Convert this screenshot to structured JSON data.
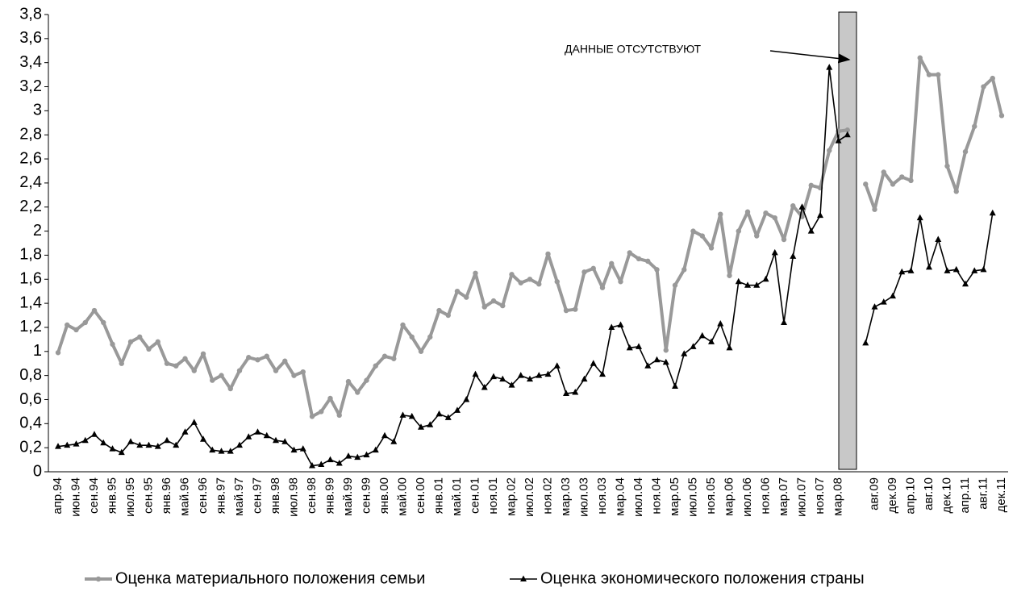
{
  "chart_data": {
    "type": "line",
    "annotation": "ДАННЫЕ  ОТСУТСТВУЮТ",
    "categories": [
      "апр.94",
      null,
      "июн.94",
      null,
      "сен.94",
      null,
      "янв.95",
      null,
      "июл.95",
      null,
      "сен.95",
      null,
      "янв.96",
      null,
      "май.96",
      null,
      "сен.96",
      null,
      "янв.97",
      null,
      "май.97",
      null,
      "сен.97",
      null,
      "янв.98",
      null,
      "июл.98",
      null,
      "сен.98",
      null,
      "янв.99",
      null,
      "май.99",
      null,
      "сен.99",
      null,
      "янв.00",
      null,
      "май.00",
      null,
      "сен.00",
      null,
      "янв.01",
      null,
      "май.01",
      null,
      "сен.01",
      null,
      "ноя.01",
      null,
      "мар.02",
      null,
      "июл.02",
      null,
      "ноя.02",
      null,
      "мар.03",
      null,
      "июл.03",
      null,
      "ноя.03",
      null,
      "мар.04",
      null,
      "июл.04",
      null,
      "ноя.04",
      null,
      "мар.05",
      null,
      "июл.05",
      null,
      "ноя.05",
      null,
      "мар.06",
      null,
      "июл.06",
      null,
      "ноя.06",
      null,
      "мар.07",
      null,
      "июл.07",
      null,
      "ноя.07",
      null,
      "мар.08",
      null,
      null,
      null,
      "авг.09",
      null,
      "дек.09",
      null,
      "апр.10",
      null,
      "авг.10",
      null,
      "дек.10",
      null,
      "апр.11",
      null,
      "авг.11",
      null,
      "дек.11"
    ],
    "series": [
      {
        "name": "Оценка материального положения семьи",
        "color": "#999999",
        "marker": "circle",
        "values": [
          0.99,
          1.22,
          1.18,
          1.24,
          1.34,
          1.24,
          1.06,
          0.9,
          1.08,
          1.12,
          1.02,
          1.08,
          0.9,
          0.88,
          0.94,
          0.84,
          0.98,
          0.76,
          0.8,
          0.69,
          0.84,
          0.95,
          0.93,
          0.96,
          0.84,
          0.92,
          0.8,
          0.83,
          0.46,
          0.5,
          0.61,
          0.47,
          0.75,
          0.66,
          0.76,
          0.88,
          0.96,
          0.94,
          1.22,
          1.12,
          1.0,
          1.12,
          1.34,
          1.3,
          1.5,
          1.45,
          1.65,
          1.37,
          1.42,
          1.38,
          1.64,
          1.57,
          1.6,
          1.56,
          1.81,
          1.58,
          1.34,
          1.35,
          1.66,
          1.69,
          1.53,
          1.73,
          1.58,
          1.82,
          1.77,
          1.75,
          1.68,
          1.01,
          1.55,
          1.68,
          2.0,
          1.96,
          1.86,
          2.14,
          1.63,
          2.0,
          2.16,
          1.96,
          2.15,
          2.11,
          1.93,
          2.21,
          2.12,
          2.38,
          2.36,
          2.67,
          2.83,
          2.84,
          null,
          2.39,
          2.18,
          2.49,
          2.39,
          2.45,
          2.42,
          3.44,
          3.3,
          3.3,
          2.54,
          2.33,
          2.66,
          2.87,
          3.2,
          3.27,
          2.96
        ]
      },
      {
        "name": "Оценка экономического положения страны",
        "color": "#000000",
        "marker": "triangle",
        "values": [
          0.21,
          0.22,
          0.23,
          0.26,
          0.31,
          0.24,
          0.19,
          0.16,
          0.25,
          0.22,
          0.22,
          0.21,
          0.26,
          0.22,
          0.33,
          0.41,
          0.27,
          0.18,
          0.17,
          0.17,
          0.22,
          0.29,
          0.33,
          0.3,
          0.26,
          0.25,
          0.18,
          0.19,
          0.05,
          0.06,
          0.1,
          0.07,
          0.13,
          0.12,
          0.14,
          0.18,
          0.3,
          0.25,
          0.47,
          0.46,
          0.37,
          0.39,
          0.48,
          0.45,
          0.51,
          0.6,
          0.81,
          0.7,
          0.79,
          0.77,
          0.72,
          0.8,
          0.77,
          0.8,
          0.81,
          0.88,
          0.65,
          0.66,
          0.77,
          0.9,
          0.81,
          1.2,
          1.22,
          1.03,
          1.04,
          0.88,
          0.93,
          0.91,
          0.71,
          0.98,
          1.04,
          1.13,
          1.08,
          1.23,
          1.03,
          1.58,
          1.55,
          1.55,
          1.6,
          1.82,
          1.24,
          1.79,
          2.2,
          2.0,
          2.13,
          3.36,
          2.75,
          2.8,
          null,
          1.07,
          1.37,
          1.41,
          1.46,
          1.66,
          1.67,
          2.11,
          1.7,
          1.93,
          1.67,
          1.68,
          1.56,
          1.67,
          1.68,
          2.15,
          null
        ]
      }
    ],
    "ylim": [
      0,
      3.8
    ],
    "yticks": [
      0,
      {
        "value": 0.2,
        "label": "0,2"
      },
      {
        "value": 0.4,
        "label": "0,4"
      },
      {
        "value": 0.6,
        "label": "0,6"
      },
      {
        "value": 0.8,
        "label": "0,8"
      },
      1,
      {
        "value": 1.2,
        "label": "1,2"
      },
      {
        "value": 1.4,
        "label": "1,4"
      },
      {
        "value": 1.6,
        "label": "1,6"
      },
      {
        "value": 1.8,
        "label": "1,8"
      },
      2,
      {
        "value": 2.2,
        "label": "2,2"
      },
      {
        "value": 2.4,
        "label": "2,4"
      },
      {
        "value": 2.6,
        "label": "2,6"
      },
      {
        "value": 2.8,
        "label": "2,8"
      },
      3,
      {
        "value": 3.2,
        "label": "3,2"
      },
      {
        "value": 3.4,
        "label": "3,4"
      },
      {
        "value": 3.6,
        "label": "3,6"
      },
      {
        "value": 3.8,
        "label": "3,8"
      }
    ],
    "grid": false,
    "legend": "bottom"
  }
}
